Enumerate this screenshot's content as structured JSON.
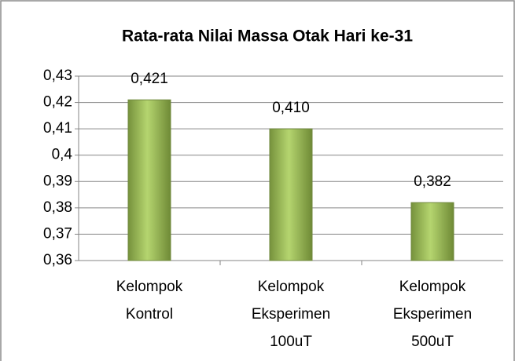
{
  "chart_data": {
    "type": "bar",
    "title": "Rata-rata Nilai Massa Otak Hari ke-31",
    "categories": [
      "Kelompok Kontrol",
      "Kelompok Eksperimen 100uT",
      "Kelompok Eksperimen 500uT"
    ],
    "values": [
      0.421,
      0.41,
      0.382
    ],
    "value_labels": [
      "0,421",
      "0,410",
      "0,382"
    ],
    "color": "#9bbb59",
    "ylim": [
      0.36,
      0.43
    ],
    "yticks": [
      {
        "value": 0.36,
        "label": "0,36"
      },
      {
        "value": 0.37,
        "label": "0,37"
      },
      {
        "value": 0.38,
        "label": "0,38"
      },
      {
        "value": 0.39,
        "label": "0,39"
      },
      {
        "value": 0.4,
        "label": "0,4"
      },
      {
        "value": 0.41,
        "label": "0,41"
      },
      {
        "value": 0.42,
        "label": "0,42"
      },
      {
        "value": 0.43,
        "label": "0,43"
      }
    ],
    "grid": true
  }
}
